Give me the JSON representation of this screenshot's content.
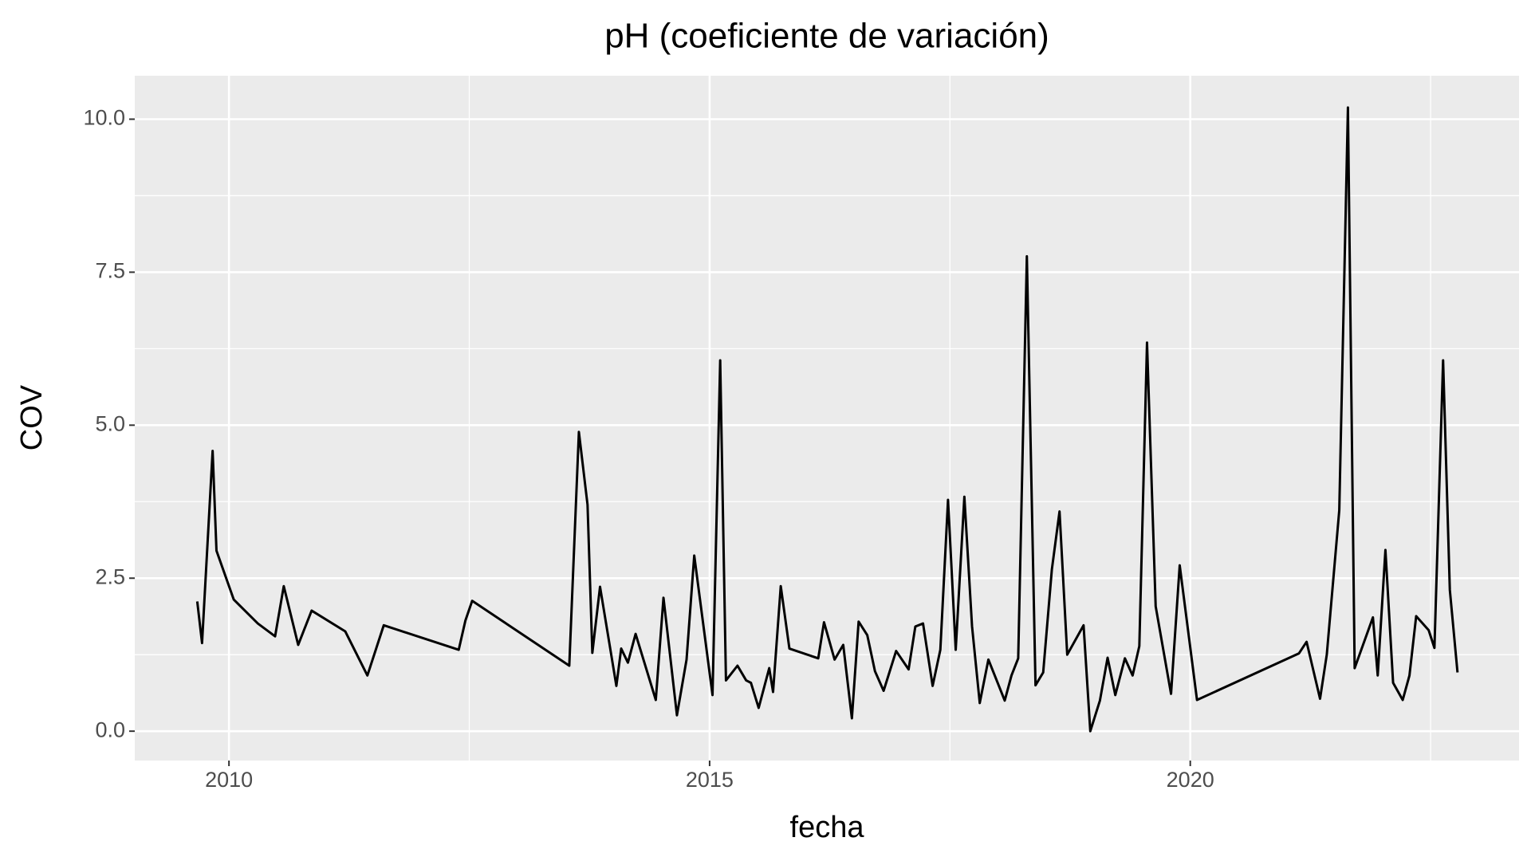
{
  "chart_data": {
    "type": "line",
    "title": "pH (coeficiente de variación)",
    "x_label": "fecha",
    "y_label": "COV",
    "x": [
      2009.67,
      2009.72,
      2009.83,
      2009.87,
      2010.05,
      2010.3,
      2010.48,
      2010.57,
      2010.72,
      2010.86,
      2011.21,
      2011.44,
      2011.61,
      2012.39,
      2012.46,
      2012.53,
      2013.54,
      2013.64,
      2013.73,
      2013.78,
      2013.86,
      2014.03,
      2014.08,
      2014.15,
      2014.23,
      2014.44,
      2014.52,
      2014.66,
      2014.76,
      2014.84,
      2015.03,
      2015.11,
      2015.17,
      2015.29,
      2015.38,
      2015.43,
      2015.51,
      2015.62,
      2015.66,
      2015.74,
      2015.83,
      2016.13,
      2016.19,
      2016.3,
      2016.39,
      2016.48,
      2016.55,
      2016.64,
      2016.72,
      2016.81,
      2016.94,
      2017.07,
      2017.14,
      2017.22,
      2017.32,
      2017.4,
      2017.48,
      2017.56,
      2017.65,
      2017.73,
      2017.81,
      2017.9,
      2018.07,
      2018.14,
      2018.21,
      2018.3,
      2018.39,
      2018.47,
      2018.56,
      2018.64,
      2018.72,
      2018.89,
      2018.96,
      2019.06,
      2019.14,
      2019.22,
      2019.32,
      2019.4,
      2019.47,
      2019.55,
      2019.64,
      2019.8,
      2019.89,
      2020.07,
      2021.13,
      2021.21,
      2021.35,
      2021.42,
      2021.55,
      2021.64,
      2021.71,
      2021.9,
      2021.95,
      2022.03,
      2022.11,
      2022.21,
      2022.28,
      2022.35,
      2022.48,
      2022.54,
      2022.63,
      2022.7,
      2022.78
    ],
    "values": [
      2.12,
      1.44,
      4.58,
      2.95,
      2.15,
      1.76,
      1.55,
      2.37,
      1.41,
      1.97,
      1.63,
      0.91,
      1.73,
      1.33,
      1.81,
      2.13,
      1.07,
      4.89,
      3.7,
      1.28,
      2.36,
      0.74,
      1.35,
      1.12,
      1.59,
      0.51,
      2.18,
      0.26,
      1.17,
      2.87,
      0.59,
      6.06,
      0.83,
      1.07,
      0.83,
      0.79,
      0.38,
      1.03,
      0.64,
      2.37,
      1.35,
      1.19,
      1.78,
      1.17,
      1.41,
      0.21,
      1.79,
      1.57,
      0.98,
      0.66,
      1.31,
      1.01,
      1.71,
      1.76,
      0.74,
      1.33,
      3.78,
      1.33,
      3.83,
      1.71,
      0.46,
      1.17,
      0.5,
      0.91,
      1.19,
      7.76,
      0.75,
      0.96,
      2.64,
      3.59,
      1.25,
      1.73,
      0.0,
      0.5,
      1.2,
      0.59,
      1.19,
      0.91,
      1.39,
      6.35,
      2.04,
      0.61,
      2.71,
      0.51,
      1.27,
      1.46,
      0.53,
      1.25,
      3.61,
      10.19,
      1.03,
      1.86,
      0.91,
      2.96,
      0.79,
      0.51,
      0.91,
      1.88,
      1.65,
      1.36,
      6.06,
      2.31,
      0.96
    ],
    "color": "#000000",
    "xlim": [
      2009.02,
      2023.42
    ],
    "xticks": [
      2010,
      2015,
      2020
    ],
    "xminor": [
      2012.5,
      2017.5,
      2022.5
    ],
    "ylim": [
      -0.48,
      10.71
    ],
    "yticks": [
      {
        "value": 0,
        "label": "0.0"
      },
      2.5,
      {
        "value": 5,
        "label": "5.0"
      },
      7.5,
      {
        "value": 10,
        "label": "10.0"
      }
    ],
    "yminor": [
      1.25,
      3.75,
      6.25,
      8.75
    ],
    "grid": true
  }
}
